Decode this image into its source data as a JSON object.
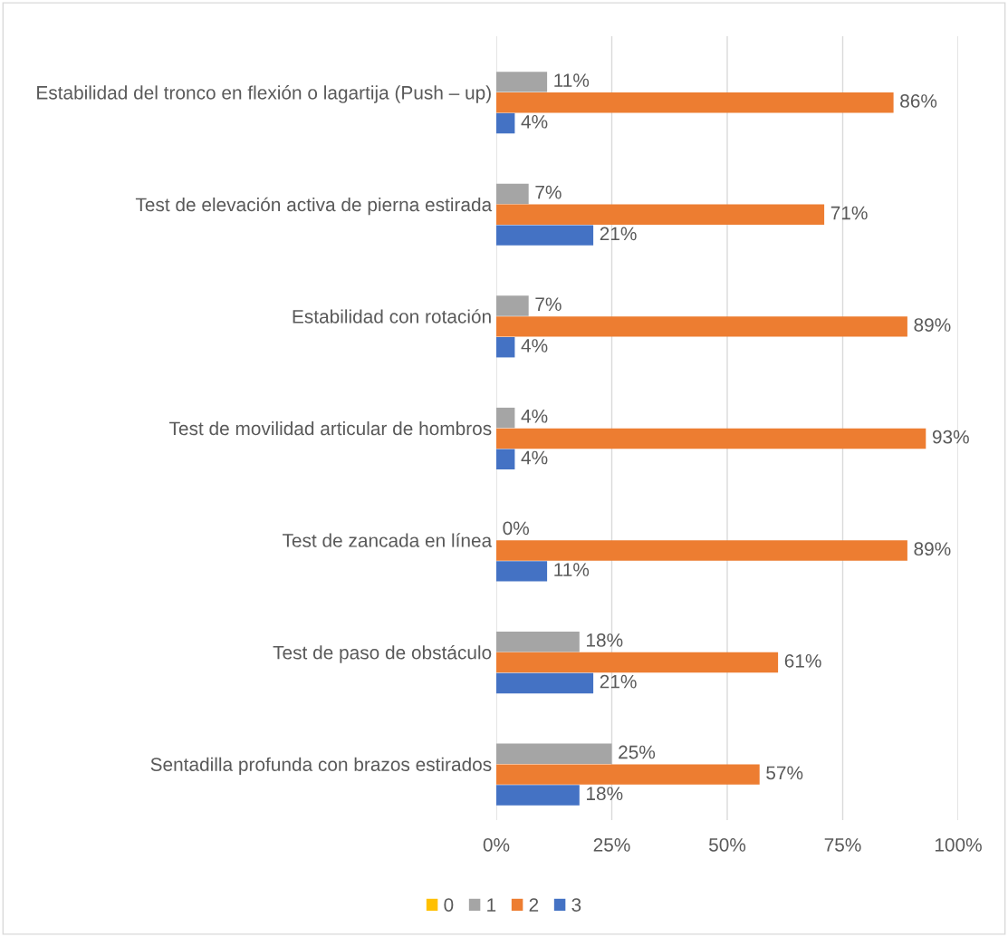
{
  "chart_data": {
    "type": "bar",
    "orientation": "horizontal",
    "categories": [
      "Estabilidad del tronco en flexión o lagartija (Push – up)",
      "Test de elevación activa de pierna estirada",
      "Estabilidad con rotación",
      "Test de movilidad articular de hombros",
      "Test de zancada en línea",
      "Test de paso de obstáculo",
      "Sentadilla profunda con brazos estirados"
    ],
    "series": [
      {
        "name": "0",
        "color": "#ffc000",
        "values": [
          null,
          null,
          null,
          null,
          null,
          null,
          null
        ],
        "value_labels": [
          null,
          null,
          null,
          null,
          null,
          null,
          null
        ]
      },
      {
        "name": "1",
        "color": "#a5a5a5",
        "values": [
          11,
          7,
          7,
          4,
          0,
          18,
          25
        ],
        "value_labels": [
          "11%",
          "7%",
          "7%",
          "4%",
          "0%",
          "18%",
          "25%"
        ]
      },
      {
        "name": "2",
        "color": "#ed7d31",
        "values": [
          86,
          71,
          89,
          93,
          89,
          61,
          57
        ],
        "value_labels": [
          "86%",
          "71%",
          "89%",
          "93%",
          "89%",
          "61%",
          "57%"
        ]
      },
      {
        "name": "3",
        "color": "#4472c4",
        "values": [
          4,
          21,
          4,
          4,
          11,
          21,
          18
        ],
        "value_labels": [
          "4%",
          "21%",
          "4%",
          "4%",
          "11%",
          "21%",
          "18%"
        ]
      }
    ],
    "xlim": [
      0,
      100
    ],
    "xticks": [
      {
        "value": 0,
        "label": "0%"
      },
      {
        "value": 25,
        "label": "25%"
      },
      {
        "value": 50,
        "label": "50%"
      },
      {
        "value": 75,
        "label": "75%"
      },
      {
        "value": 100,
        "label": "100%"
      }
    ],
    "grid": "x",
    "legend": "bottom"
  }
}
